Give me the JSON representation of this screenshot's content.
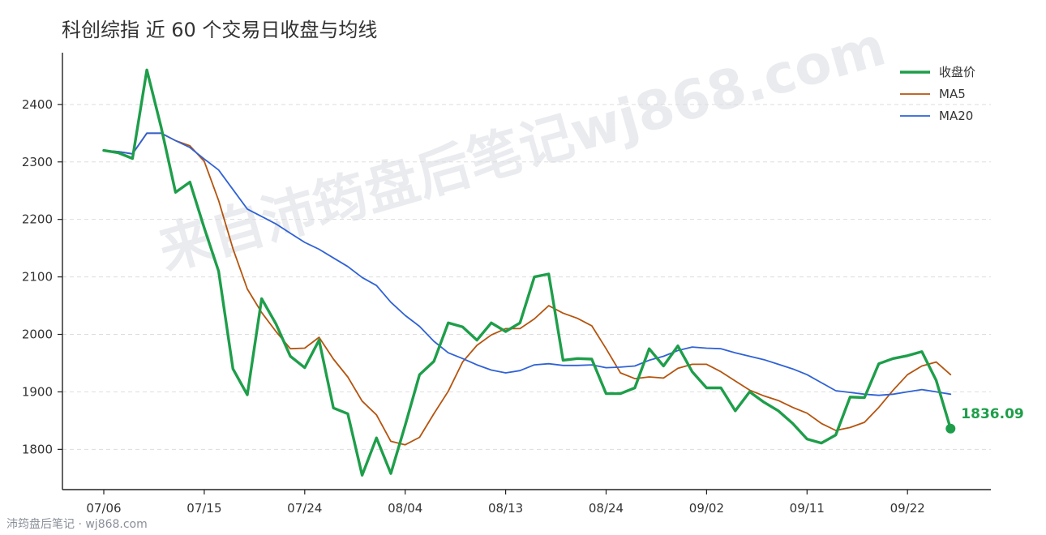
{
  "title": "科创综指 近 60 个交易日收盘与均线",
  "watermark": "来自沛筠盘后笔记wj868.com",
  "footer": "沛筠盘后笔记 · wj868.com",
  "chart_data": {
    "type": "line",
    "title": "科创综指 近 60 个交易日收盘与均线",
    "xlabel": "",
    "ylabel": "",
    "ylim": [
      1730,
      2490
    ],
    "yticks": [
      1800,
      1900,
      2000,
      2100,
      2200,
      2300,
      2400
    ],
    "xtick_labels": [
      {
        "index": 0,
        "label": "07/06"
      },
      {
        "index": 7,
        "label": "07/15"
      },
      {
        "index": 14,
        "label": "07/24"
      },
      {
        "index": 21,
        "label": "08/04"
      },
      {
        "index": 28,
        "label": "08/13"
      },
      {
        "index": 35,
        "label": "08/24"
      },
      {
        "index": 42,
        "label": "09/02"
      },
      {
        "index": 49,
        "label": "09/11"
      },
      {
        "index": 56,
        "label": "09/22"
      }
    ],
    "grid": "y-dashed",
    "legend_position": "top-right",
    "last_value_label": "1836.09",
    "series": [
      {
        "name": "收盘价",
        "color": "#1e9e4a",
        "values": [
          2320,
          2316,
          2306,
          2460,
          2360,
          2247,
          2265,
          2185,
          2110,
          1940,
          1895,
          2062,
          2018,
          1962,
          1942,
          1990,
          1872,
          1862,
          1755,
          1820,
          1758,
          1842,
          1930,
          1953,
          2020,
          2013,
          1990,
          2020,
          2005,
          2020,
          2100,
          2105,
          1955,
          1958,
          1957,
          1897,
          1897,
          1907,
          1975,
          1945,
          1980,
          1935,
          1907,
          1907,
          1867,
          1900,
          1882,
          1867,
          1845,
          1818,
          1811,
          1825,
          1891,
          1890,
          1949,
          1958,
          1963,
          1970,
          1920,
          1836.09
        ]
      },
      {
        "name": "MA5",
        "color": "#b5540e",
        "values": [
          2320,
          2318,
          2314,
          2350,
          2350,
          2337,
          2328,
          2301,
          2233,
          2149,
          2079,
          2038,
          2005,
          1975,
          1976,
          1995,
          1957,
          1926,
          1884,
          1860,
          1814,
          1808,
          1821,
          1862,
          1901,
          1952,
          1981,
          1999,
          2010,
          2010,
          2027,
          2050,
          2037,
          2028,
          2015,
          1975,
          1933,
          1923,
          1926,
          1924,
          1941,
          1948,
          1948,
          1935,
          1919,
          1903,
          1893,
          1885,
          1873,
          1863,
          1845,
          1833,
          1838,
          1847,
          1873,
          1903,
          1930,
          1945,
          1952,
          1930
        ]
      },
      {
        "name": "MA20",
        "color": "#2f62d6",
        "values": [
          2320,
          2318,
          2314,
          2350,
          2350,
          2337,
          2325,
          2305,
          2286,
          2252,
          2218,
          2205,
          2192,
          2176,
          2160,
          2148,
          2133,
          2118,
          2099,
          2085,
          2056,
          2033,
          2014,
          1988,
          1968,
          1958,
          1947,
          1938,
          1933,
          1937,
          1947,
          1949,
          1946,
          1946,
          1947,
          1942,
          1943,
          1945,
          1955,
          1962,
          1972,
          1978,
          1976,
          1975,
          1968,
          1962,
          1956,
          1948,
          1940,
          1930,
          1916,
          1902,
          1899,
          1896,
          1894,
          1896,
          1900,
          1904,
          1900,
          1896
        ]
      }
    ]
  }
}
